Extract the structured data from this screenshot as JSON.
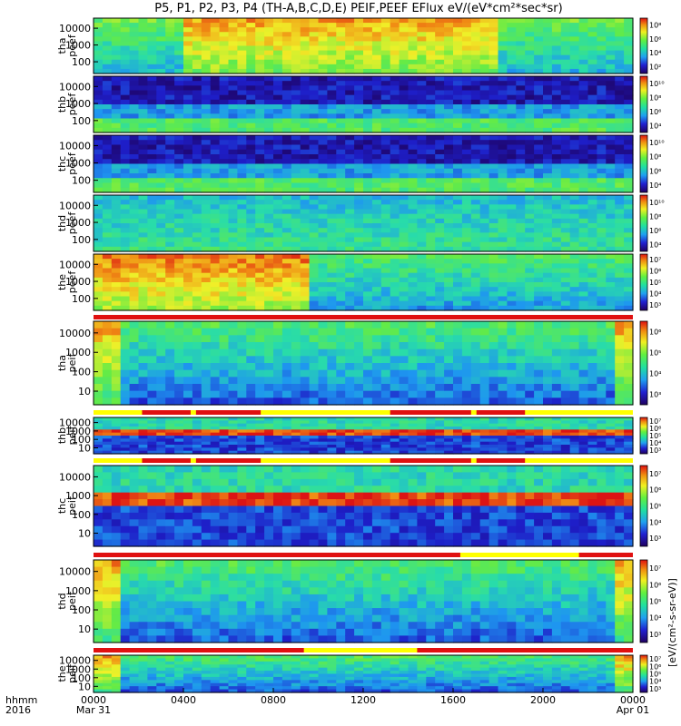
{
  "title": "P5, P1, P2, P3, P4 (TH-A,B,C,D,E) PEIF,PEEF EFlux eV/(eV*cm²*sec*sr)",
  "colorbar_unit_right": "[eV/(cm²-s-sr-eV)]",
  "x_axis": {
    "row1_label": "hhmm",
    "row2_label": "2016",
    "ticks": [
      {
        "time": "0000",
        "date": "Mar 31"
      },
      {
        "time": "0400",
        "date": ""
      },
      {
        "time": "0800",
        "date": ""
      },
      {
        "time": "1200",
        "date": ""
      },
      {
        "time": "1600",
        "date": ""
      },
      {
        "time": "2000",
        "date": ""
      },
      {
        "time": "0000",
        "date": "Apr 01"
      }
    ]
  },
  "colors": {
    "spectrogram_high": "#e01010",
    "spectrogram_mid": "#f0e020",
    "spectrogram_low": "#20c050",
    "spectrogram_min": "#2020a0",
    "mode_bar_red": "#e01010",
    "mode_bar_yellow": "#ffff00"
  },
  "chart_data": [
    {
      "type": "heatmap",
      "probe": "tha",
      "species": "peef",
      "ylabel": "tha peef",
      "yscale": "log",
      "yticks": [
        "100",
        "1000",
        "10000"
      ],
      "colorbar_ticks": [
        "10²",
        "10⁴",
        "10⁶",
        "10⁸"
      ]
    },
    {
      "type": "heatmap",
      "probe": "thb",
      "species": "peef",
      "ylabel": "thb peef",
      "yscale": "log",
      "yticks": [
        "100",
        "1000",
        "10000"
      ],
      "colorbar_ticks": [
        "10⁴",
        "10⁶",
        "10⁸",
        "10¹⁰"
      ]
    },
    {
      "type": "heatmap",
      "probe": "thc",
      "species": "peef",
      "ylabel": "thc peef",
      "yscale": "log",
      "yticks": [
        "100",
        "1000",
        "10000"
      ],
      "colorbar_ticks": [
        "10⁴",
        "10⁶",
        "10⁸",
        "10¹⁰"
      ]
    },
    {
      "type": "heatmap",
      "probe": "thd",
      "species": "peef",
      "ylabel": "thd peef",
      "yscale": "log",
      "yticks": [
        "100",
        "1000",
        "10000"
      ],
      "colorbar_ticks": [
        "10⁴",
        "10⁶",
        "10⁸",
        "10¹⁰"
      ]
    },
    {
      "type": "heatmap",
      "probe": "the",
      "species": "peef",
      "ylabel": "the peef",
      "yscale": "log",
      "yticks": [
        "100",
        "1000",
        "10000"
      ],
      "colorbar_ticks": [
        "10³",
        "10⁴",
        "10⁵",
        "10⁶",
        "10⁷"
      ]
    },
    {
      "type": "heatmap",
      "probe": "tha",
      "species": "peif",
      "ylabel": "tha peif",
      "yscale": "log",
      "yticks": [
        "10",
        "100",
        "1000",
        "10000"
      ],
      "colorbar_ticks": [
        "10³",
        "10⁴",
        "10⁵",
        "10⁶"
      ]
    },
    {
      "type": "heatmap",
      "probe": "thb",
      "species": "peif",
      "ylabel": "thb peif",
      "yscale": "log",
      "yticks": [
        "10",
        "100",
        "1000",
        "10000"
      ],
      "colorbar_ticks": [
        "10³",
        "10⁴",
        "10⁵",
        "10⁶",
        "10⁷"
      ]
    },
    {
      "type": "heatmap",
      "probe": "thc",
      "species": "peif",
      "ylabel": "thc peif",
      "yscale": "log",
      "yticks": [
        "10",
        "100",
        "1000",
        "10000"
      ],
      "colorbar_ticks": [
        "10³",
        "10⁴",
        "10⁵",
        "10⁶",
        "10⁷"
      ]
    },
    {
      "type": "heatmap",
      "probe": "thd",
      "species": "peif",
      "ylabel": "thd peif",
      "yscale": "log",
      "yticks": [
        "10",
        "100",
        "1000",
        "10000"
      ],
      "colorbar_ticks": [
        "10³",
        "10⁴",
        "10⁵",
        "10⁶",
        "10⁷"
      ]
    },
    {
      "type": "heatmap",
      "probe": "the",
      "species": "peif",
      "ylabel": "the peif",
      "yscale": "log",
      "yticks": [
        "10",
        "100",
        "1000",
        "10000"
      ],
      "colorbar_ticks": [
        "10³",
        "10⁴",
        "10⁵",
        "10⁶",
        "10⁷"
      ]
    }
  ]
}
